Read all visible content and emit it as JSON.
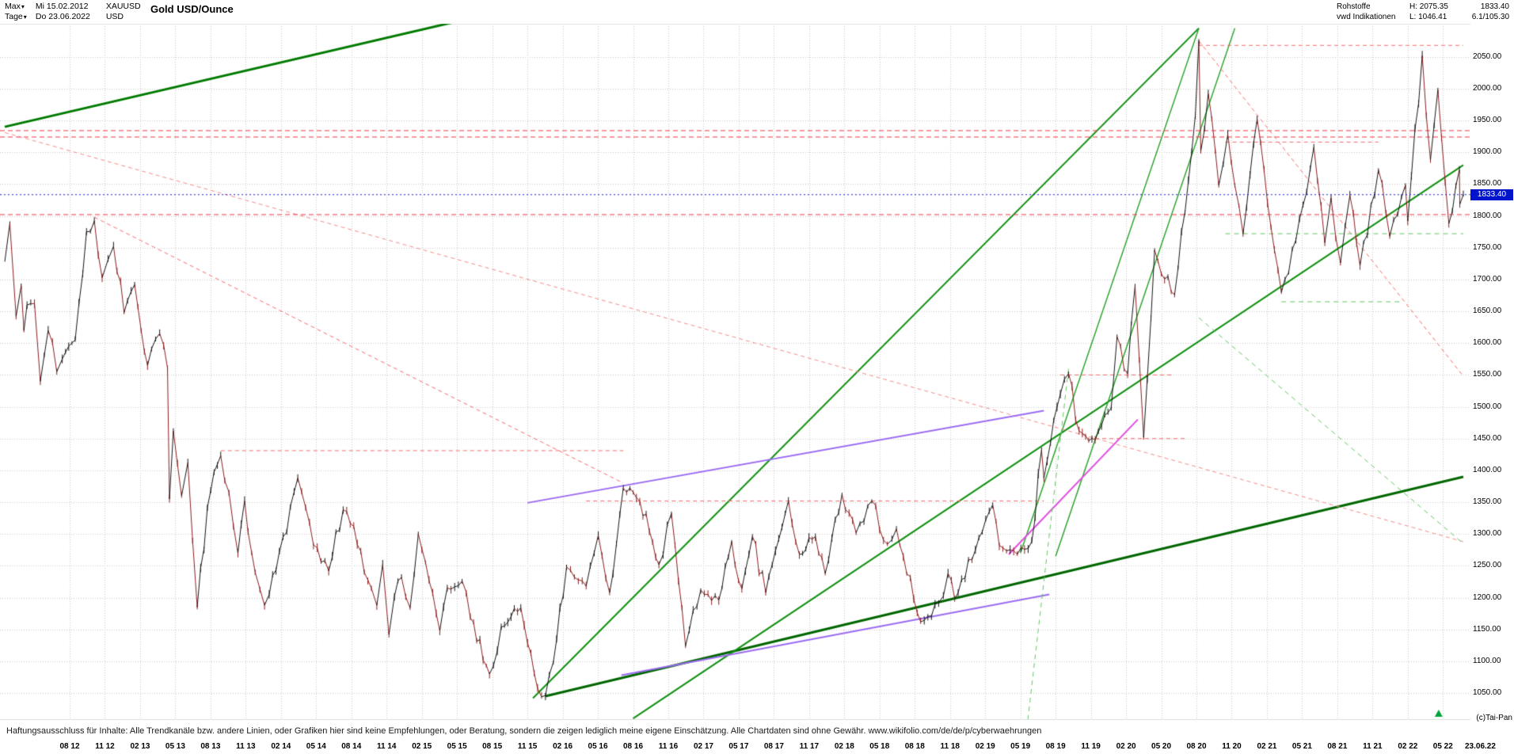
{
  "header": {
    "range_selector": "Max",
    "interval_selector": "Tage",
    "start_date": "Mi 15.02.2012",
    "end_date": "Do 23.06.2022",
    "symbol": "XAUUSD",
    "currency": "USD",
    "title": "Gold USD/Ounce",
    "right": {
      "category": "Rohstoffe",
      "source": "vwd Indikationen",
      "high": "H: 2075.35",
      "low": "L: 1046.41",
      "last": "1833.40",
      "change": "6.1/105.30"
    }
  },
  "footer": {
    "disclaimer": "Haftungsausschluss für Inhalte: Alle Trendkanäle bzw. andere Linien, oder Grafiken hier sind keine Empfehlungen, oder Beratung, sondern die zeigen lediglich meine eigene Einschätzung. Alle Chartdaten sind ohne Gewähr.  www.wikifolio.com/de/de/p/cyberwaehrungen",
    "copyright": "(c)Tai-Pan",
    "last_date": "23.06.22"
  },
  "colors": {
    "up": "#141414",
    "down": "#8a1c1c",
    "grid": "#c9c9c9",
    "border": "#dddddd",
    "current_price_bg": "#0014cc"
  },
  "chart_data": {
    "type": "line",
    "title": "Gold USD/Ounce",
    "x_range": [
      "2012-02-15",
      "2022-06-23"
    ],
    "ylim": [
      1009,
      2102
    ],
    "y_ticks": [
      2050,
      2000,
      1950,
      1900,
      1850,
      1800,
      1750,
      1700,
      1650,
      1600,
      1550,
      1500,
      1450,
      1400,
      1350,
      1300,
      1250,
      1200,
      1150,
      1100,
      1050
    ],
    "x_ticks": [
      [
        "2012-08-01",
        "08 12"
      ],
      [
        "2012-11-01",
        "11 12"
      ],
      [
        "2013-02-01",
        "02 13"
      ],
      [
        "2013-05-01",
        "05 13"
      ],
      [
        "2013-08-01",
        "08 13"
      ],
      [
        "2013-11-01",
        "11 13"
      ],
      [
        "2014-02-01",
        "02 14"
      ],
      [
        "2014-05-01",
        "05 14"
      ],
      [
        "2014-08-01",
        "08 14"
      ],
      [
        "2014-11-01",
        "11 14"
      ],
      [
        "2015-02-01",
        "02 15"
      ],
      [
        "2015-05-01",
        "05 15"
      ],
      [
        "2015-08-01",
        "08 15"
      ],
      [
        "2015-11-01",
        "11 15"
      ],
      [
        "2016-02-01",
        "02 16"
      ],
      [
        "2016-05-01",
        "05 16"
      ],
      [
        "2016-08-01",
        "08 16"
      ],
      [
        "2016-11-01",
        "11 16"
      ],
      [
        "2017-02-01",
        "02 17"
      ],
      [
        "2017-05-01",
        "05 17"
      ],
      [
        "2017-08-01",
        "08 17"
      ],
      [
        "2017-11-01",
        "11 17"
      ],
      [
        "2018-02-01",
        "02 18"
      ],
      [
        "2018-05-01",
        "05 18"
      ],
      [
        "2018-08-01",
        "08 18"
      ],
      [
        "2018-11-01",
        "11 18"
      ],
      [
        "2019-02-01",
        "02 19"
      ],
      [
        "2019-05-01",
        "05 19"
      ],
      [
        "2019-08-01",
        "08 19"
      ],
      [
        "2019-11-01",
        "11 19"
      ],
      [
        "2020-02-01",
        "02 20"
      ],
      [
        "2020-05-01",
        "05 20"
      ],
      [
        "2020-08-01",
        "08 20"
      ],
      [
        "2020-11-01",
        "11 20"
      ],
      [
        "2021-02-01",
        "02 21"
      ],
      [
        "2021-05-01",
        "05 21"
      ],
      [
        "2021-08-01",
        "08 21"
      ],
      [
        "2021-11-01",
        "11 21"
      ],
      [
        "2022-02-01",
        "02 22"
      ],
      [
        "2022-05-01",
        "05 22"
      ]
    ],
    "last_price": 1833.4,
    "last_price_label": "1833.40",
    "series": [
      {
        "name": "XAUUSD daily close",
        "points": [
          [
            "2012-02-15",
            1728
          ],
          [
            "2012-02-28",
            1788
          ],
          [
            "2012-03-14",
            1642
          ],
          [
            "2012-03-27",
            1690
          ],
          [
            "2012-04-04",
            1620
          ],
          [
            "2012-04-12",
            1660
          ],
          [
            "2012-05-01",
            1662
          ],
          [
            "2012-05-16",
            1540
          ],
          [
            "2012-06-06",
            1620
          ],
          [
            "2012-06-28",
            1555
          ],
          [
            "2012-07-12",
            1575
          ],
          [
            "2012-08-15",
            1605
          ],
          [
            "2012-09-14",
            1775
          ],
          [
            "2012-10-04",
            1792
          ],
          [
            "2012-10-24",
            1703
          ],
          [
            "2012-11-09",
            1731
          ],
          [
            "2012-11-23",
            1752
          ],
          [
            "2012-12-20",
            1648
          ],
          [
            "2013-01-17",
            1692
          ],
          [
            "2013-02-20",
            1565
          ],
          [
            "2013-03-21",
            1615
          ],
          [
            "2013-04-11",
            1561
          ],
          [
            "2013-04-16",
            1355
          ],
          [
            "2013-04-26",
            1462
          ],
          [
            "2013-05-17",
            1360
          ],
          [
            "2013-06-03",
            1412
          ],
          [
            "2013-06-27",
            1185
          ],
          [
            "2013-07-23",
            1342
          ],
          [
            "2013-08-27",
            1423
          ],
          [
            "2013-09-18",
            1366
          ],
          [
            "2013-10-11",
            1270
          ],
          [
            "2013-10-28",
            1352
          ],
          [
            "2013-11-25",
            1240
          ],
          [
            "2013-12-19",
            1188
          ],
          [
            "2013-12-31",
            1205
          ],
          [
            "2014-01-27",
            1272
          ],
          [
            "2014-03-14",
            1388
          ],
          [
            "2014-04-24",
            1283
          ],
          [
            "2014-06-03",
            1242
          ],
          [
            "2014-07-10",
            1338
          ],
          [
            "2014-08-07",
            1312
          ],
          [
            "2014-09-22",
            1215
          ],
          [
            "2014-10-06",
            1188
          ],
          [
            "2014-10-21",
            1252
          ],
          [
            "2014-11-07",
            1142
          ],
          [
            "2014-11-21",
            1202
          ],
          [
            "2014-12-09",
            1232
          ],
          [
            "2014-12-31",
            1184
          ],
          [
            "2015-01-22",
            1300
          ],
          [
            "2015-03-17",
            1148
          ],
          [
            "2015-04-06",
            1215
          ],
          [
            "2015-05-14",
            1226
          ],
          [
            "2015-06-05",
            1168
          ],
          [
            "2015-07-24",
            1080
          ],
          [
            "2015-08-24",
            1154
          ],
          [
            "2015-10-14",
            1184
          ],
          [
            "2015-11-27",
            1057
          ],
          [
            "2015-12-17",
            1046
          ],
          [
            "2016-01-07",
            1098
          ],
          [
            "2016-02-11",
            1248
          ],
          [
            "2016-03-01",
            1232
          ],
          [
            "2016-04-01",
            1218
          ],
          [
            "2016-05-02",
            1298
          ],
          [
            "2016-05-31",
            1208
          ],
          [
            "2016-07-06",
            1372
          ],
          [
            "2016-08-18",
            1352
          ],
          [
            "2016-10-07",
            1252
          ],
          [
            "2016-11-09",
            1332
          ],
          [
            "2016-12-15",
            1124
          ],
          [
            "2017-01-24",
            1212
          ],
          [
            "2017-03-10",
            1196
          ],
          [
            "2017-04-13",
            1288
          ],
          [
            "2017-05-09",
            1214
          ],
          [
            "2017-06-06",
            1296
          ],
          [
            "2017-07-10",
            1208
          ],
          [
            "2017-09-08",
            1352
          ],
          [
            "2017-10-06",
            1268
          ],
          [
            "2017-11-17",
            1296
          ],
          [
            "2017-12-12",
            1238
          ],
          [
            "2018-01-25",
            1362
          ],
          [
            "2018-03-01",
            1302
          ],
          [
            "2018-04-11",
            1352
          ],
          [
            "2018-05-21",
            1284
          ],
          [
            "2018-06-14",
            1308
          ],
          [
            "2018-08-16",
            1162
          ],
          [
            "2018-10-02",
            1192
          ],
          [
            "2018-10-26",
            1238
          ],
          [
            "2018-11-13",
            1198
          ],
          [
            "2019-02-20",
            1346
          ],
          [
            "2019-03-07",
            1282
          ],
          [
            "2019-04-23",
            1268
          ],
          [
            "2019-05-30",
            1288
          ],
          [
            "2019-06-25",
            1432
          ],
          [
            "2019-07-01",
            1388
          ],
          [
            "2019-08-13",
            1520
          ],
          [
            "2019-09-04",
            1552
          ],
          [
            "2019-10-01",
            1462
          ],
          [
            "2019-11-12",
            1448
          ],
          [
            "2019-12-23",
            1498
          ],
          [
            "2020-01-08",
            1610
          ],
          [
            "2020-02-05",
            1552
          ],
          [
            "2020-02-24",
            1690
          ],
          [
            "2020-03-16",
            1452
          ],
          [
            "2020-04-14",
            1746
          ],
          [
            "2020-06-05",
            1676
          ],
          [
            "2020-07-28",
            1958
          ],
          [
            "2020-08-07",
            2075
          ],
          [
            "2020-08-12",
            1902
          ],
          [
            "2020-09-01",
            1992
          ],
          [
            "2020-09-28",
            1848
          ],
          [
            "2020-10-21",
            1928
          ],
          [
            "2020-11-09",
            1848
          ],
          [
            "2020-11-30",
            1772
          ],
          [
            "2021-01-06",
            1952
          ],
          [
            "2021-03-08",
            1680
          ],
          [
            "2021-04-15",
            1762
          ],
          [
            "2021-06-01",
            1908
          ],
          [
            "2021-06-29",
            1758
          ],
          [
            "2021-07-15",
            1828
          ],
          [
            "2021-08-09",
            1726
          ],
          [
            "2021-09-03",
            1832
          ],
          [
            "2021-09-29",
            1722
          ],
          [
            "2021-11-16",
            1872
          ],
          [
            "2021-12-15",
            1768
          ],
          [
            "2022-01-25",
            1848
          ],
          [
            "2022-02-01",
            1792
          ],
          [
            "2022-03-08",
            2052
          ],
          [
            "2022-03-29",
            1888
          ],
          [
            "2022-04-18",
            1998
          ],
          [
            "2022-05-16",
            1788
          ],
          [
            "2022-06-13",
            1872
          ],
          [
            "2022-06-14",
            1818
          ],
          [
            "2022-06-23",
            1833.4
          ]
        ]
      }
    ],
    "levels": [
      {
        "name": "resistance-upper",
        "price": 1934,
        "color": "#ee3344",
        "dash": [
          6,
          4
        ],
        "width": 1
      },
      {
        "name": "resistance-lower",
        "price": 1924,
        "color": "#ee3344",
        "dash": [
          6,
          4
        ],
        "width": 1
      },
      {
        "name": "support-1802",
        "price": 1802,
        "color": "#ee3344",
        "dash": [
          6,
          4
        ],
        "width": 1
      },
      {
        "name": "current-price",
        "price": 1833.4,
        "color": "#1a1acc",
        "dash": [
          2,
          3
        ],
        "width": 1.2,
        "on_top": true
      }
    ],
    "lines": [
      {
        "name": "green-trend-upper-left",
        "color": "#007a00",
        "width": 3,
        "dash": [],
        "p1": [
          "2012-02-15",
          1940
        ],
        "p2": [
          "2015-06-01",
          2110
        ]
      },
      {
        "name": "green-support-major",
        "color": "#006600",
        "width": 3,
        "dash": [],
        "p1": [
          "2015-12-17",
          1045
        ],
        "p2": [
          "2022-06-23",
          1390
        ]
      },
      {
        "name": "green-channel-lower",
        "color": "#0f8f0f",
        "width": 2,
        "dash": [],
        "p1": [
          "2015-11-15",
          1042
        ],
        "p2": [
          "2020-08-07",
          2095
        ]
      },
      {
        "name": "green-channel-upper",
        "color": "#0f8f0f",
        "width": 2,
        "dash": [],
        "p1": [
          "2016-08-01",
          1010
        ],
        "p2": [
          "2022-06-23",
          1880
        ]
      },
      {
        "name": "green-steep-1",
        "color": "#2aa32a",
        "width": 1.5,
        "dash": [],
        "p1": [
          "2019-05-01",
          1270
        ],
        "p2": [
          "2020-08-07",
          2095
        ]
      },
      {
        "name": "green-steep-2",
        "color": "#2aa32a",
        "width": 1.5,
        "dash": [],
        "p1": [
          "2019-08-01",
          1265
        ],
        "p2": [
          "2020-11-09",
          2095
        ]
      },
      {
        "name": "red-downtrend-2012",
        "color": "#f56a6a",
        "width": 1,
        "dash": [
          5,
          4
        ],
        "p1": [
          "2012-10-04",
          1798
        ],
        "p2": [
          "2016-07-06",
          1380
        ]
      },
      {
        "name": "red-downtrend-long",
        "color": "#f58a8a",
        "width": 1,
        "dash": [
          5,
          4
        ],
        "p1": [
          "2012-02-15",
          1931
        ],
        "p2": [
          "2022-06-23",
          1288
        ]
      },
      {
        "name": "red-downtrend-2020",
        "color": "#f56a6a",
        "width": 1,
        "dash": [
          5,
          4
        ],
        "p1": [
          "2020-08-07",
          2075
        ],
        "p2": [
          "2022-06-23",
          1548
        ]
      },
      {
        "name": "violet-trend-mid",
        "color": "#9b6bf2",
        "width": 2,
        "dash": [],
        "p1": [
          "2015-11-01",
          1349
        ],
        "p2": [
          "2019-07-01",
          1494
        ]
      },
      {
        "name": "violet-trend-low",
        "color": "#9b6bf2",
        "width": 2,
        "dash": [],
        "p1": [
          "2016-07-01",
          1078
        ],
        "p2": [
          "2019-07-15",
          1205
        ]
      },
      {
        "name": "magenta-trend",
        "color": "#e04de0",
        "width": 2,
        "dash": [],
        "p1": [
          "2019-04-01",
          1268
        ],
        "p2": [
          "2020-03-01",
          1480
        ]
      },
      {
        "name": "green-dashed-support-1772",
        "color": "#5fc55f",
        "width": 1,
        "dash": [
          6,
          5
        ],
        "p1": [
          "2020-10-15",
          1772
        ],
        "p2": [
          "2022-06-23",
          1772
        ]
      },
      {
        "name": "green-dashed-support-1665",
        "color": "#5fc55f",
        "width": 1,
        "dash": [
          6,
          5
        ],
        "p1": [
          "2021-03-08",
          1665
        ],
        "p2": [
          "2022-01-15",
          1665
        ]
      },
      {
        "name": "green-dashed-falling",
        "color": "#5fc55f",
        "width": 1,
        "dash": [
          6,
          5
        ],
        "p1": [
          "2020-08-07",
          1640
        ],
        "p2": [
          "2022-06-23",
          1285
        ]
      },
      {
        "name": "green-dashed-steep",
        "color": "#5fc55f",
        "width": 1,
        "dash": [
          6,
          5
        ],
        "p1": [
          "2019-05-20",
          1008
        ],
        "p2": [
          "2019-09-04",
          1560
        ]
      },
      {
        "name": "red-level-1431",
        "color": "#f56a6a",
        "width": 1,
        "dash": [
          5,
          4
        ],
        "p1": [
          "2013-08-27",
          1431
        ],
        "p2": [
          "2016-07-06",
          1431
        ]
      },
      {
        "name": "red-level-1352",
        "color": "#f56a6a",
        "width": 1,
        "dash": [
          5,
          4
        ],
        "p1": [
          "2016-04-01",
          1352
        ],
        "p2": [
          "2019-07-01",
          1352
        ]
      },
      {
        "name": "red-level-1550",
        "color": "#f56a6a",
        "width": 1,
        "dash": [
          5,
          4
        ],
        "p1": [
          "2019-08-13",
          1550
        ],
        "p2": [
          "2020-06-01",
          1550
        ]
      },
      {
        "name": "red-level-1450",
        "color": "#f56a6a",
        "width": 1,
        "dash": [
          5,
          4
        ],
        "p1": [
          "2019-11-12",
          1450
        ],
        "p2": [
          "2020-07-01",
          1450
        ]
      },
      {
        "name": "red-level-2068",
        "color": "#f56a6a",
        "width": 1,
        "dash": [
          5,
          4
        ],
        "p1": [
          "2020-08-07",
          2068
        ],
        "p2": [
          "2022-06-23",
          2068
        ]
      },
      {
        "name": "red-level-1916",
        "color": "#f56a6a",
        "width": 1,
        "dash": [
          5,
          4
        ],
        "p1": [
          "2020-10-15",
          1916
        ],
        "p2": [
          "2021-11-16",
          1916
        ]
      }
    ],
    "marker": {
      "t": "2022-04-20",
      "shape": "triangle-up",
      "color": "#00a33c"
    }
  }
}
